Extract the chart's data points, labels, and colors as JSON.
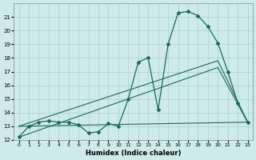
{
  "xlabel": "Humidex (Indice chaleur)",
  "xlim": [
    -0.5,
    23.5
  ],
  "ylim": [
    12,
    22
  ],
  "yticks": [
    12,
    13,
    14,
    15,
    16,
    17,
    18,
    19,
    20,
    21
  ],
  "xticks": [
    0,
    1,
    2,
    3,
    4,
    5,
    6,
    7,
    8,
    9,
    10,
    11,
    12,
    13,
    14,
    15,
    16,
    17,
    18,
    19,
    20,
    21,
    22,
    23
  ],
  "bg_color": "#ceeaea",
  "grid_color": "#aacfcf",
  "line_color": "#1a6b5a",
  "line1_x": [
    0,
    1,
    2,
    3,
    4,
    5,
    6,
    7,
    8,
    9,
    10,
    11,
    12,
    13,
    14,
    15,
    16,
    17,
    18,
    19,
    20,
    21,
    22,
    23
  ],
  "line1_y": [
    12.2,
    13.0,
    13.3,
    13.4,
    13.3,
    13.3,
    13.1,
    12.5,
    12.6,
    13.2,
    13.0,
    15.0,
    17.7,
    18.0,
    14.2,
    19.0,
    21.3,
    21.4,
    21.1,
    20.3,
    19.1,
    17.0,
    14.7,
    13.3
  ],
  "line2_x": [
    0,
    20,
    23
  ],
  "line2_y": [
    13.0,
    17.8,
    13.3
  ],
  "line3_x": [
    0,
    20,
    23
  ],
  "line3_y": [
    12.2,
    17.3,
    13.3
  ],
  "line4_x": [
    0,
    23
  ],
  "line4_y": [
    13.0,
    13.3
  ]
}
